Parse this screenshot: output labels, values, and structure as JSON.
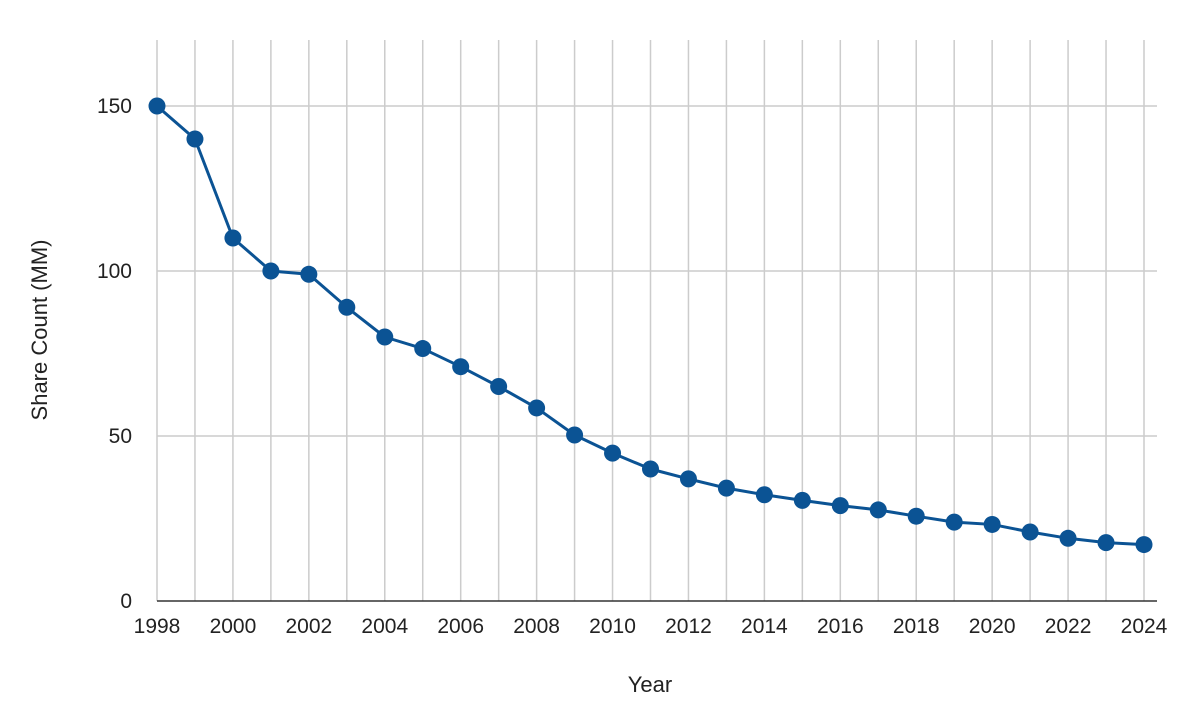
{
  "chart_data": {
    "type": "line",
    "title": "",
    "xlabel": "Year",
    "ylabel": "Share Count (MM)",
    "xlim": [
      1998,
      2024
    ],
    "ylim": [
      0,
      170
    ],
    "x_ticks": [
      "1998",
      "2000",
      "2002",
      "2004",
      "2006",
      "2008",
      "2010",
      "2012",
      "2014",
      "2016",
      "2018",
      "2020",
      "2022",
      "2024"
    ],
    "y_ticks": [
      "0",
      "50",
      "100",
      "150"
    ],
    "grid": true,
    "legend": "none",
    "series": [
      {
        "color": "#0b5394",
        "x": [
          1998,
          1999,
          2000,
          2001,
          2002,
          2003,
          2004,
          2005,
          2006,
          2007,
          2008,
          2009,
          2010,
          2011,
          2012,
          2013,
          2014,
          2015,
          2016,
          2017,
          2018,
          2019,
          2020,
          2021,
          2022,
          2023,
          2024
        ],
        "values": [
          150,
          140,
          110,
          100,
          99,
          89,
          80,
          76.5,
          71,
          65,
          58.5,
          50.3,
          44.8,
          40,
          37,
          34.2,
          32.2,
          30.5,
          28.9,
          27.6,
          25.7,
          23.9,
          23.2,
          20.9,
          19,
          17.7,
          17.1
        ]
      }
    ]
  }
}
